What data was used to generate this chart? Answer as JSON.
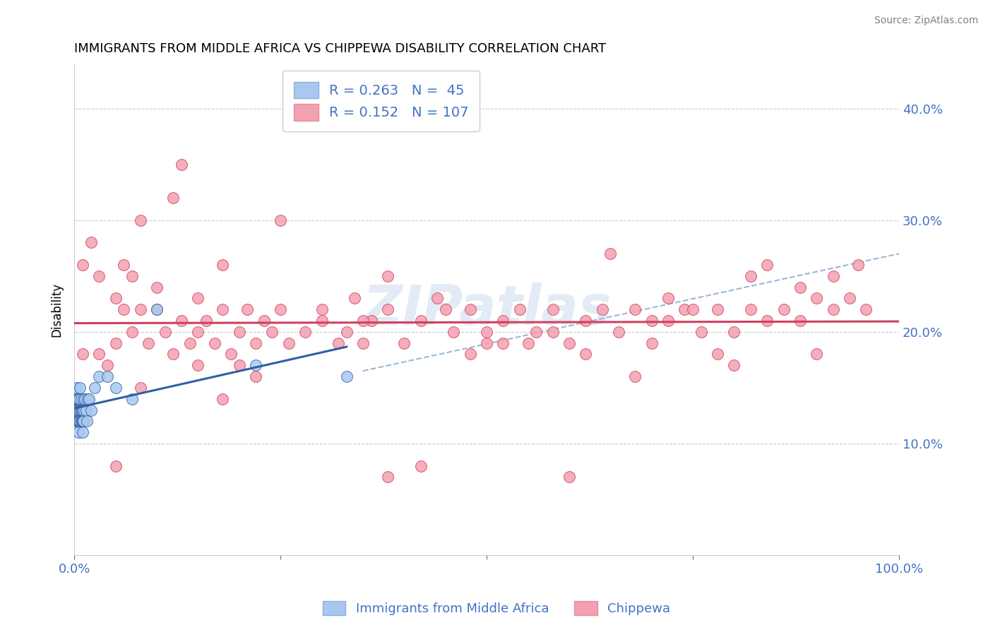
{
  "title": "IMMIGRANTS FROM MIDDLE AFRICA VS CHIPPEWA DISABILITY CORRELATION CHART",
  "source": "Source: ZipAtlas.com",
  "ylabel": "Disability",
  "xlim": [
    0.0,
    1.0
  ],
  "ylim": [
    0.0,
    0.44
  ],
  "blue_R": 0.263,
  "blue_N": 45,
  "pink_R": 0.152,
  "pink_N": 107,
  "blue_color": "#A8C8F0",
  "pink_color": "#F4A0B0",
  "blue_line_color": "#3060A0",
  "pink_line_color": "#D04060",
  "dashed_line_color": "#9AB8D8",
  "watermark": "ZIPatlas",
  "blue_scatter_x": [
    0.001,
    0.001,
    0.002,
    0.002,
    0.002,
    0.003,
    0.003,
    0.003,
    0.004,
    0.004,
    0.004,
    0.005,
    0.005,
    0.005,
    0.006,
    0.006,
    0.006,
    0.007,
    0.007,
    0.007,
    0.008,
    0.008,
    0.008,
    0.009,
    0.009,
    0.01,
    0.01,
    0.01,
    0.011,
    0.011,
    0.012,
    0.013,
    0.014,
    0.015,
    0.016,
    0.018,
    0.02,
    0.025,
    0.03,
    0.04,
    0.05,
    0.07,
    0.1,
    0.22,
    0.33
  ],
  "blue_scatter_y": [
    0.13,
    0.14,
    0.12,
    0.13,
    0.15,
    0.12,
    0.13,
    0.14,
    0.12,
    0.13,
    0.14,
    0.11,
    0.12,
    0.14,
    0.12,
    0.13,
    0.14,
    0.12,
    0.13,
    0.15,
    0.12,
    0.13,
    0.14,
    0.12,
    0.13,
    0.11,
    0.12,
    0.13,
    0.12,
    0.14,
    0.13,
    0.14,
    0.13,
    0.12,
    0.14,
    0.14,
    0.13,
    0.15,
    0.16,
    0.16,
    0.15,
    0.14,
    0.22,
    0.17,
    0.16
  ],
  "pink_scatter_x": [
    0.01,
    0.01,
    0.02,
    0.03,
    0.03,
    0.04,
    0.05,
    0.05,
    0.06,
    0.06,
    0.07,
    0.07,
    0.08,
    0.08,
    0.09,
    0.1,
    0.1,
    0.11,
    0.12,
    0.13,
    0.14,
    0.15,
    0.15,
    0.16,
    0.17,
    0.18,
    0.19,
    0.2,
    0.21,
    0.22,
    0.23,
    0.24,
    0.25,
    0.26,
    0.28,
    0.3,
    0.32,
    0.34,
    0.35,
    0.36,
    0.38,
    0.4,
    0.42,
    0.44,
    0.46,
    0.48,
    0.5,
    0.52,
    0.54,
    0.56,
    0.58,
    0.6,
    0.62,
    0.64,
    0.66,
    0.68,
    0.7,
    0.72,
    0.74,
    0.76,
    0.78,
    0.8,
    0.82,
    0.84,
    0.86,
    0.88,
    0.9,
    0.92,
    0.94,
    0.96,
    0.13,
    0.25,
    0.45,
    0.65,
    0.82,
    0.18,
    0.35,
    0.55,
    0.75,
    0.92,
    0.08,
    0.2,
    0.38,
    0.58,
    0.78,
    0.95,
    0.12,
    0.3,
    0.5,
    0.7,
    0.88,
    0.15,
    0.33,
    0.52,
    0.72,
    0.9,
    0.22,
    0.42,
    0.62,
    0.84,
    0.05,
    0.18,
    0.38,
    0.6,
    0.8,
    0.48,
    0.68
  ],
  "pink_scatter_y": [
    0.18,
    0.26,
    0.28,
    0.18,
    0.25,
    0.17,
    0.19,
    0.23,
    0.26,
    0.22,
    0.25,
    0.2,
    0.22,
    0.3,
    0.19,
    0.22,
    0.24,
    0.2,
    0.18,
    0.21,
    0.19,
    0.23,
    0.17,
    0.21,
    0.19,
    0.22,
    0.18,
    0.2,
    0.22,
    0.19,
    0.21,
    0.2,
    0.22,
    0.19,
    0.2,
    0.22,
    0.19,
    0.23,
    0.19,
    0.21,
    0.22,
    0.19,
    0.21,
    0.23,
    0.2,
    0.22,
    0.19,
    0.21,
    0.22,
    0.2,
    0.22,
    0.19,
    0.21,
    0.22,
    0.2,
    0.22,
    0.19,
    0.21,
    0.22,
    0.2,
    0.22,
    0.2,
    0.22,
    0.21,
    0.22,
    0.21,
    0.23,
    0.22,
    0.23,
    0.22,
    0.35,
    0.3,
    0.22,
    0.27,
    0.25,
    0.26,
    0.21,
    0.19,
    0.22,
    0.25,
    0.15,
    0.17,
    0.25,
    0.2,
    0.18,
    0.26,
    0.32,
    0.21,
    0.2,
    0.21,
    0.24,
    0.2,
    0.2,
    0.19,
    0.23,
    0.18,
    0.16,
    0.08,
    0.18,
    0.26,
    0.08,
    0.14,
    0.07,
    0.07,
    0.17,
    0.18,
    0.16
  ]
}
